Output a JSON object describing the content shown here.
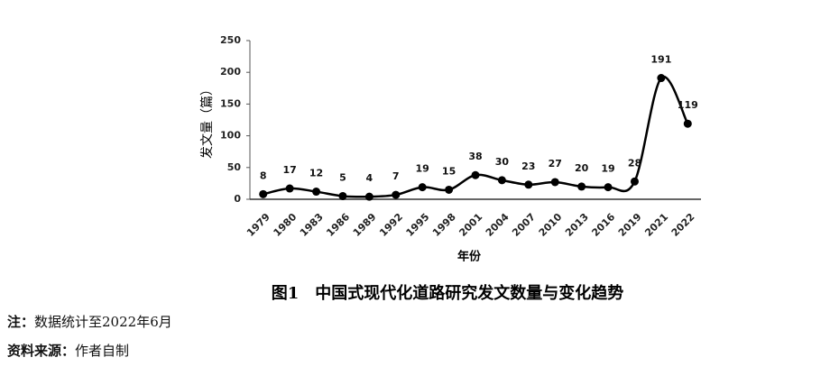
{
  "chart_data": {
    "type": "line",
    "title": "图1　中国式现代化道路研究发文数量与变化趋势",
    "y_label": "发文量（篇）",
    "x_label": "年份",
    "categories": [
      "1979",
      "1980",
      "1983",
      "1986",
      "1989",
      "1992",
      "1995",
      "1998",
      "2001",
      "2004",
      "2007",
      "2010",
      "2013",
      "2016",
      "2019",
      "2021",
      "2022"
    ],
    "values": [
      8,
      17,
      12,
      5,
      4,
      7,
      19,
      15,
      38,
      30,
      23,
      27,
      20,
      19,
      28,
      191,
      119
    ],
    "color": "#000000",
    "ylim": [
      0,
      250
    ],
    "yticks": [
      0,
      50,
      100,
      150,
      200,
      250
    ]
  },
  "notes": {
    "note_label": "注：",
    "note_text": "数据统计至2022年6月",
    "source_label": "资料来源：",
    "source_text": "作者自制"
  }
}
